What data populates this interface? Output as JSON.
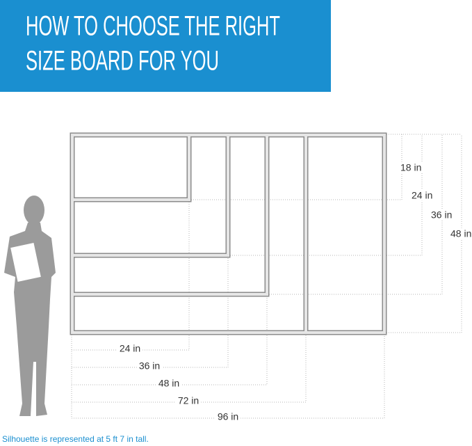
{
  "header": {
    "title_lines": [
      "HOW TO CHOOSE THE RIGHT",
      "SIZE BOARD FOR YOU"
    ]
  },
  "heights": [
    "18 in",
    "24 in",
    "36 in",
    "48 in"
  ],
  "widths": [
    "24 in",
    "36 in",
    "48 in",
    "72 in",
    "96 in"
  ],
  "footnote": "Silhouette is represented at 5 ft 7 in tall."
}
